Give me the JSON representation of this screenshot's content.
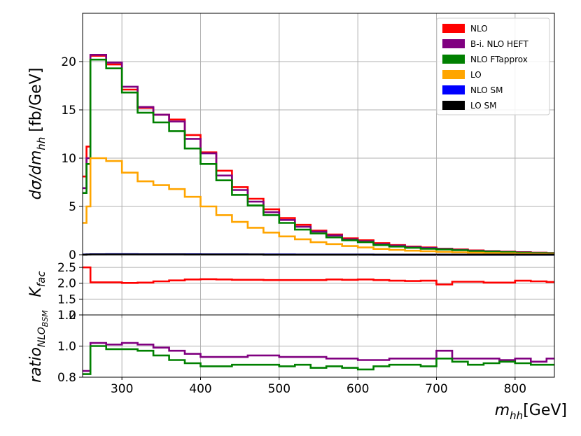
{
  "chart_data": [
    {
      "type": "line",
      "panel": "main",
      "ylabel": "dσ/dm_hh [fb/GeV]",
      "xlim": [
        250,
        850
      ],
      "ylim": [
        0,
        25
      ],
      "yticks": [
        0,
        5,
        10,
        15,
        20
      ],
      "ytick_labels": [
        "0",
        "5",
        "10",
        "15",
        "20"
      ],
      "grid": true,
      "legend_position": "top-right",
      "bin_edges": [
        250,
        255,
        260,
        280,
        300,
        320,
        340,
        360,
        380,
        400,
        420,
        440,
        460,
        480,
        500,
        520,
        540,
        560,
        580,
        600,
        620,
        640,
        660,
        680,
        700,
        720,
        740,
        760,
        780,
        800,
        820,
        840,
        850
      ],
      "series": [
        {
          "name": "NLO",
          "color": "#ff0000",
          "values": [
            8.1,
            11.2,
            20.6,
            19.7,
            17.1,
            15.2,
            14.5,
            14.0,
            12.4,
            10.6,
            8.7,
            7.0,
            5.8,
            4.7,
            3.8,
            3.1,
            2.5,
            2.1,
            1.7,
            1.5,
            1.2,
            1.0,
            0.85,
            0.75,
            0.62,
            0.55,
            0.45,
            0.38,
            0.32,
            0.27,
            0.22,
            0.18
          ]
        },
        {
          "name": "B-i. NLO HEFT",
          "color": "#800080",
          "values": [
            6.9,
            10.0,
            20.7,
            19.9,
            17.4,
            15.3,
            14.5,
            13.8,
            12.0,
            10.5,
            8.2,
            6.7,
            5.5,
            4.4,
            3.6,
            2.9,
            2.4,
            2.0,
            1.6,
            1.4,
            1.1,
            0.95,
            0.8,
            0.7,
            0.6,
            0.5,
            0.42,
            0.36,
            0.3,
            0.25,
            0.2,
            0.17
          ]
        },
        {
          "name": "NLO FTapprox",
          "color": "#008000",
          "values": [
            6.4,
            9.4,
            20.2,
            19.3,
            16.8,
            14.7,
            13.7,
            12.8,
            11.0,
            9.4,
            7.7,
            6.2,
            5.1,
            4.1,
            3.3,
            2.6,
            2.2,
            1.8,
            1.5,
            1.3,
            1.0,
            0.85,
            0.72,
            0.62,
            0.55,
            0.47,
            0.38,
            0.32,
            0.27,
            0.22,
            0.18,
            0.15
          ]
        },
        {
          "name": "LO",
          "color": "#ffa500",
          "values": [
            3.3,
            5.0,
            10.0,
            9.7,
            8.5,
            7.6,
            7.2,
            6.8,
            6.0,
            5.0,
            4.1,
            3.4,
            2.8,
            2.3,
            1.9,
            1.6,
            1.3,
            1.1,
            0.9,
            0.75,
            0.6,
            0.5,
            0.42,
            0.36,
            0.3,
            0.25,
            0.21,
            0.18,
            0.15,
            0.12,
            0.1,
            0.08
          ]
        },
        {
          "name": "NLO SM",
          "color": "#0000ff",
          "values": [
            0.02,
            0.03,
            0.05,
            0.06,
            0.06,
            0.05,
            0.05,
            0.05,
            0.05,
            0.04,
            0.04,
            0.04,
            0.03,
            0.03,
            0.03,
            0.02,
            0.02,
            0.02,
            0.02,
            0.02,
            0.01,
            0.01,
            0.01,
            0.01,
            0.01,
            0.01,
            0.01,
            0.01,
            0.01,
            0.01,
            0.01,
            0.01
          ]
        },
        {
          "name": "LO SM",
          "color": "#000000",
          "values": [
            0.01,
            0.02,
            0.03,
            0.03,
            0.03,
            0.03,
            0.03,
            0.03,
            0.02,
            0.02,
            0.02,
            0.02,
            0.02,
            0.01,
            0.01,
            0.01,
            0.01,
            0.01,
            0.01,
            0.01,
            0.01,
            0.01,
            0.01,
            0.01,
            0.01,
            0.01,
            0.01,
            0.01,
            0.01,
            0.01,
            0.01,
            0.01
          ]
        }
      ]
    },
    {
      "type": "line",
      "panel": "kfac",
      "ylabel": "K_fac",
      "ylim": [
        1.0,
        2.9
      ],
      "yticks": [
        1.0,
        1.5,
        2.0,
        2.5
      ],
      "ytick_labels": [
        "1.0",
        "1.5",
        "2.0",
        "2.5"
      ],
      "grid": true,
      "bin_edges": [
        250,
        260,
        280,
        300,
        320,
        340,
        360,
        380,
        400,
        420,
        440,
        460,
        480,
        500,
        520,
        540,
        560,
        580,
        600,
        620,
        640,
        660,
        680,
        700,
        720,
        740,
        760,
        780,
        800,
        820,
        840,
        850
      ],
      "series": [
        {
          "name": "K_fac",
          "color": "#ff0000",
          "values": [
            2.5,
            2.03,
            2.03,
            2.01,
            2.02,
            2.06,
            2.09,
            2.12,
            2.13,
            2.12,
            2.11,
            2.11,
            2.1,
            2.1,
            2.1,
            2.1,
            2.12,
            2.11,
            2.12,
            2.1,
            2.08,
            2.07,
            2.08,
            1.96,
            2.05,
            2.05,
            2.02,
            2.02,
            2.08,
            2.06,
            2.04
          ]
        }
      ]
    },
    {
      "type": "line",
      "panel": "ratio",
      "ylabel": "ratio_NLO_BSM",
      "xlabel": "m_hh[GeV]",
      "ylim": [
        0.8,
        1.2
      ],
      "yticks": [
        0.8,
        1.0,
        1.2
      ],
      "ytick_labels": [
        "0.8",
        "1.0",
        "1.2"
      ],
      "xticks": [
        300,
        400,
        500,
        600,
        700,
        800
      ],
      "xtick_labels": [
        "300",
        "400",
        "500",
        "600",
        "700",
        "800"
      ],
      "grid": true,
      "bin_edges": [
        250,
        260,
        280,
        300,
        320,
        340,
        360,
        380,
        400,
        420,
        440,
        460,
        480,
        500,
        520,
        540,
        560,
        580,
        600,
        620,
        640,
        660,
        680,
        700,
        720,
        740,
        760,
        780,
        800,
        820,
        840,
        850
      ],
      "series": [
        {
          "name": "B-i. NLO HEFT",
          "color": "#800080",
          "values": [
            0.84,
            1.02,
            1.01,
            1.02,
            1.01,
            0.99,
            0.97,
            0.95,
            0.93,
            0.93,
            0.93,
            0.94,
            0.94,
            0.93,
            0.93,
            0.93,
            0.92,
            0.92,
            0.91,
            0.91,
            0.92,
            0.92,
            0.92,
            0.97,
            0.92,
            0.92,
            0.92,
            0.91,
            0.92,
            0.9,
            0.92
          ]
        },
        {
          "name": "NLO FTapprox",
          "color": "#008000",
          "values": [
            0.82,
            1.0,
            0.98,
            0.98,
            0.97,
            0.94,
            0.91,
            0.89,
            0.87,
            0.87,
            0.88,
            0.88,
            0.88,
            0.87,
            0.88,
            0.86,
            0.87,
            0.86,
            0.85,
            0.87,
            0.88,
            0.88,
            0.87,
            0.92,
            0.9,
            0.88,
            0.89,
            0.9,
            0.89,
            0.88,
            0.88
          ]
        }
      ]
    }
  ]
}
